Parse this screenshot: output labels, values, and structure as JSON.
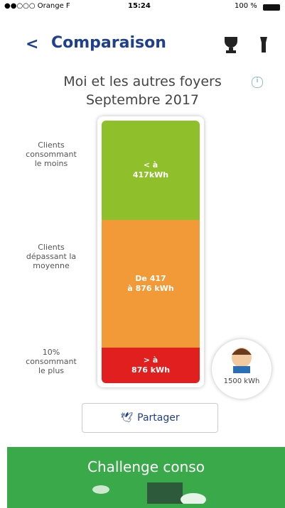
{
  "status_bar": {
    "carrier": "●●○○○ Orange F",
    "time": "15:24",
    "battery": "100 %"
  },
  "nav": {
    "back": "<",
    "title": "Comparaison"
  },
  "heading": {
    "lines": [
      "Moi et les autres foyers",
      "Septembre 2017"
    ]
  },
  "segments": [
    {
      "label": [
        "Clients",
        "consommant",
        "le moins"
      ],
      "range": [
        "< à",
        "417kWh"
      ]
    },
    {
      "label": [
        "Clients",
        "dépassant la",
        "moyenne"
      ],
      "range": [
        "De 417",
        "à 876 kWh"
      ]
    },
    {
      "label": [
        "10%",
        "consommant",
        "le plus"
      ],
      "range": [
        "> à",
        "876 kWh"
      ]
    }
  ],
  "me": {
    "value": "1500 kWh"
  },
  "share_button": "Partager",
  "footer": {
    "title": "Challenge conso"
  }
}
